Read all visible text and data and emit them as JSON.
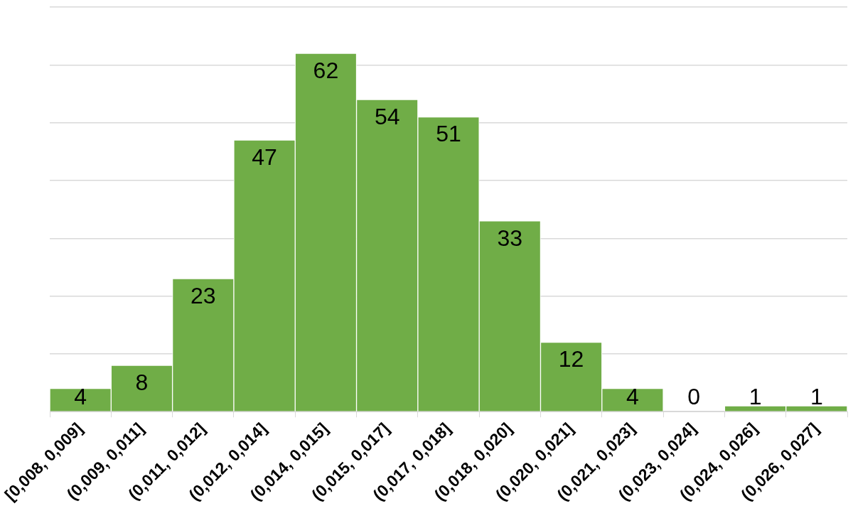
{
  "chart_data": {
    "type": "bar",
    "categories": [
      "[0,008, 0,009]",
      "(0,009, 0,011]",
      "(0,011, 0,012]",
      "(0,012, 0,014]",
      "(0,014, 0,015]",
      "(0,015, 0,017]",
      "(0,017, 0,018]",
      "(0,018, 0,020]",
      "(0,020, 0,021]",
      "(0,021, 0,023]",
      "(0,023, 0,024]",
      "(0,024, 0,026]",
      "(0,026, 0,027]"
    ],
    "values": [
      4,
      8,
      23,
      47,
      62,
      54,
      51,
      33,
      12,
      4,
      0,
      1,
      1
    ],
    "color": "#70ad47",
    "ylim": [
      0,
      70
    ],
    "yticks": [
      {
        "value": 0,
        "label": null
      },
      {
        "value": 10,
        "label": null
      },
      {
        "value": 20,
        "label": null
      },
      {
        "value": 30,
        "label": null
      },
      {
        "value": 40,
        "label": null
      },
      {
        "value": 50,
        "label": null
      },
      {
        "value": 60,
        "label": null
      },
      {
        "value": 70,
        "label": null
      }
    ],
    "grid": "y",
    "tick_labels": "x",
    "data_labels": true
  }
}
